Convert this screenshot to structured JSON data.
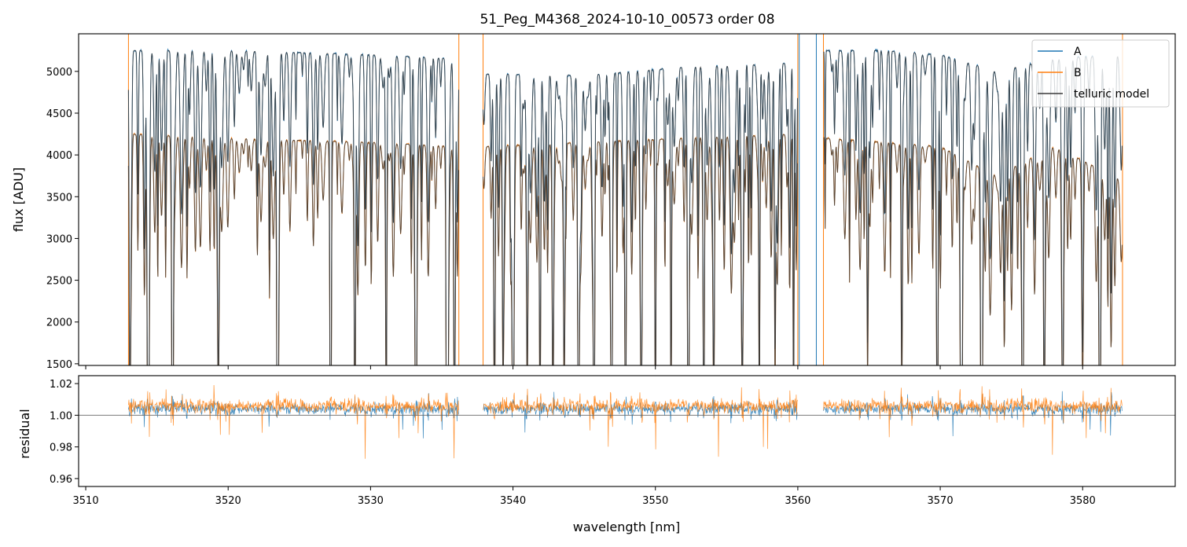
{
  "chart_data": [
    {
      "type": "line",
      "panel": "top",
      "title": "51_Peg_M4368_2024-10-10_00573  order 08",
      "xlabel": "",
      "ylabel": "flux [ADU]",
      "xlim": [
        3509.5,
        3586.5
      ],
      "ylim": [
        1480,
        5450
      ],
      "yticks": [
        1500,
        2000,
        2500,
        3000,
        3500,
        4000,
        4500,
        5000
      ],
      "ytick_labels": [
        "1500",
        "2000",
        "2500",
        "3000",
        "3500",
        "4000",
        "4500",
        "5000"
      ],
      "data_ranges": [
        [
          3513.0,
          3536.2
        ],
        [
          3537.9,
          3560.0
        ],
        [
          3561.8,
          3582.8
        ]
      ],
      "continuum": {
        "A": [
          [
            3513,
            5250
          ],
          [
            3520,
            5250
          ],
          [
            3530,
            5200
          ],
          [
            3536,
            5150
          ],
          [
            3538,
            4970
          ],
          [
            3545,
            4950
          ],
          [
            3552,
            5050
          ],
          [
            3560,
            5100
          ],
          [
            3562,
            5250
          ],
          [
            3566,
            5250
          ],
          [
            3570,
            5200
          ],
          [
            3574,
            5000
          ],
          [
            3578,
            5150
          ],
          [
            3582.8,
            5200
          ]
        ],
        "B": [
          [
            3513,
            4250
          ],
          [
            3520,
            4200
          ],
          [
            3530,
            4150
          ],
          [
            3536,
            4100
          ],
          [
            3538,
            4100
          ],
          [
            3545,
            4150
          ],
          [
            3552,
            4200
          ],
          [
            3560,
            4250
          ],
          [
            3562,
            4200
          ],
          [
            3566,
            4150
          ],
          [
            3570,
            4100
          ],
          [
            3574,
            3750
          ],
          [
            3578,
            4100
          ],
          [
            3582.8,
            3700
          ]
        ]
      },
      "deep_lines_nm": [
        3513.1,
        3514.4,
        3516.1,
        3519.3,
        3523.5,
        3527.2,
        3528.9,
        3531.1,
        3533.2,
        3535.4,
        3535.9,
        3538.7,
        3539.3,
        3540.0,
        3541.0,
        3541.9,
        3542.8,
        3543.6,
        3544.6,
        3545.7,
        3546.9,
        3547.9,
        3549.0,
        3550.0,
        3551.1,
        3552.3,
        3553.4,
        3554.1,
        3556.1,
        3557.3,
        3558.4,
        3559.7,
        3564.9,
        3567.3,
        3569.8,
        3571.5,
        3572.9,
        3574.5,
        3575.8,
        3577.3,
        3578.6,
        3580.0,
        3581.2,
        3582.0
      ],
      "series": [
        {
          "name": "A",
          "color": "#1f77b4"
        },
        {
          "name": "B",
          "color": "#ff7f0e"
        },
        {
          "name": "telluric model",
          "color": "#3a3a3a"
        }
      ],
      "spikes": [
        {
          "series": "B",
          "x": 3513.0
        },
        {
          "series": "B",
          "x": 3536.2
        },
        {
          "series": "B",
          "x": 3537.9
        },
        {
          "series": "A",
          "x": 3560.1
        },
        {
          "series": "B",
          "x": 3560.0
        },
        {
          "series": "A",
          "x": 3561.3
        },
        {
          "series": "B",
          "x": 3561.8
        },
        {
          "series": "B",
          "x": 3582.8
        }
      ],
      "legend_location": "top-right"
    },
    {
      "type": "line",
      "panel": "bottom",
      "xlabel": "wavelength [nm]",
      "ylabel": "residual",
      "xlim": [
        3509.5,
        3586.5
      ],
      "ylim": [
        0.955,
        1.025
      ],
      "xticks": [
        3510,
        3520,
        3530,
        3540,
        3550,
        3560,
        3570,
        3580
      ],
      "xtick_labels": [
        "3510",
        "3520",
        "3530",
        "3540",
        "3550",
        "3560",
        "3570",
        "3580"
      ],
      "yticks": [
        0.96,
        0.98,
        1.0,
        1.02
      ],
      "ytick_labels": [
        "0.96",
        "0.98",
        "1.00",
        "1.02"
      ],
      "reference_line_y": 1.0,
      "series": [
        {
          "name": "A",
          "color": "#1f77b4",
          "mean": 1.004,
          "noise": 0.005
        },
        {
          "name": "B",
          "color": "#ff7f0e",
          "mean": 1.006,
          "noise": 0.006
        }
      ]
    }
  ]
}
